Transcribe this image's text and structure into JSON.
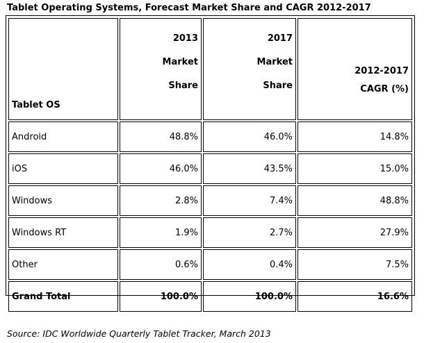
{
  "title": "Tablet Operating Systems, Forecast Market Share and CAGR 2012-2017",
  "headers": {
    "os": "Tablet OS",
    "col2013": {
      "line1": "2013",
      "line2": "Market",
      "line3": "Share"
    },
    "col2017": {
      "line1": "2017",
      "line2": "Market",
      "line3": "Share"
    },
    "cagr": {
      "line1": "2012-2017",
      "line2": "CAGR (%)"
    }
  },
  "rows": [
    {
      "os": "Android",
      "share2013": "48.8%",
      "share2017": "46.0%",
      "cagr": "14.8%"
    },
    {
      "os": "iOS",
      "share2013": "46.0%",
      "share2017": "43.5%",
      "cagr": "15.0%"
    },
    {
      "os": "Windows",
      "share2013": "2.8%",
      "share2017": "7.4%",
      "cagr": "48.8%"
    },
    {
      "os": "Windows RT",
      "share2013": "1.9%",
      "share2017": "2.7%",
      "cagr": "27.9%"
    },
    {
      "os": "Other",
      "share2013": "0.6%",
      "share2017": "0.4%",
      "cagr": "7.5%"
    }
  ],
  "total": {
    "os": "Grand Total",
    "share2013": "100.0%",
    "share2017": "100.0%",
    "cagr": "16.6%"
  },
  "source": "Source: IDC Worldwide Quarterly Tablet Tracker, March 2013"
}
